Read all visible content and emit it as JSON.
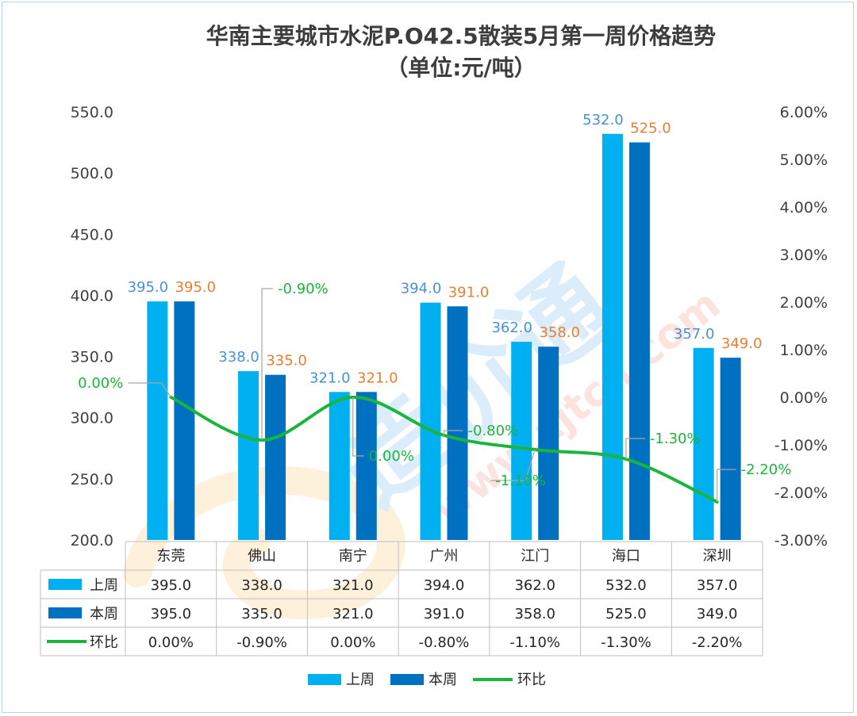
{
  "chart_data": {
    "type": "bar",
    "title": "华南主要城市水泥P.O42.5散装5月第一周价格趋势",
    "subtitle": "（单位:元/吨）",
    "categories": [
      "东莞",
      "佛山",
      "南宁",
      "广州",
      "江门",
      "海口",
      "深圳"
    ],
    "series": [
      {
        "name": "上周",
        "type": "bar",
        "axis": "left",
        "color": "#00b0f0",
        "values": [
          395.0,
          338.0,
          321.0,
          394.0,
          362.0,
          532.0,
          357.0
        ],
        "labels": [
          "395.0",
          "338.0",
          "321.0",
          "394.0",
          "362.0",
          "532.0",
          "357.0"
        ]
      },
      {
        "name": "本周",
        "type": "bar",
        "axis": "left",
        "color": "#0070c0",
        "values": [
          395.0,
          335.0,
          321.0,
          391.0,
          358.0,
          525.0,
          349.0
        ],
        "labels": [
          "395.0",
          "335.0",
          "321.0",
          "391.0",
          "358.0",
          "525.0",
          "349.0"
        ]
      },
      {
        "name": "环比",
        "type": "line",
        "axis": "right",
        "color": "#1ab53c",
        "values": [
          0.0,
          -0.9,
          0.0,
          -0.8,
          -1.1,
          -1.3,
          -2.2
        ],
        "labels": [
          "0.00%",
          "-0.90%",
          "0.00%",
          "-0.80%",
          "-1.10%",
          "-1.30%",
          "-2.20%"
        ]
      }
    ],
    "y_left": {
      "min": 200,
      "max": 550,
      "step": 50,
      "tick_labels": [
        "200.0",
        "250.0",
        "300.0",
        "350.0",
        "400.0",
        "450.0",
        "500.0",
        "550.0"
      ]
    },
    "y_right": {
      "min": -3,
      "max": 6,
      "step": 1,
      "tick_labels": [
        "-3.00%",
        "-2.00%",
        "-1.00%",
        "0.00%",
        "1.00%",
        "2.00%",
        "3.00%",
        "4.00%",
        "5.00%",
        "6.00%"
      ]
    },
    "data_table": {
      "rows": [
        {
          "name": "上周",
          "cells": [
            "395.0",
            "338.0",
            "321.0",
            "394.0",
            "362.0",
            "532.0",
            "357.0"
          ]
        },
        {
          "name": "本周",
          "cells": [
            "395.0",
            "335.0",
            "321.0",
            "391.0",
            "358.0",
            "525.0",
            "349.0"
          ]
        },
        {
          "name": "环比",
          "cells": [
            "0.00%",
            "-0.90%",
            "0.00%",
            "-0.80%",
            "-1.10%",
            "-1.30%",
            "-2.20%"
          ]
        }
      ]
    },
    "legend": {
      "position": "bottom",
      "items": [
        "上周",
        "本周",
        "环比"
      ]
    },
    "grid": false
  },
  "watermark": {
    "text": "www.zjtcn.com",
    "brand": "造价通"
  }
}
